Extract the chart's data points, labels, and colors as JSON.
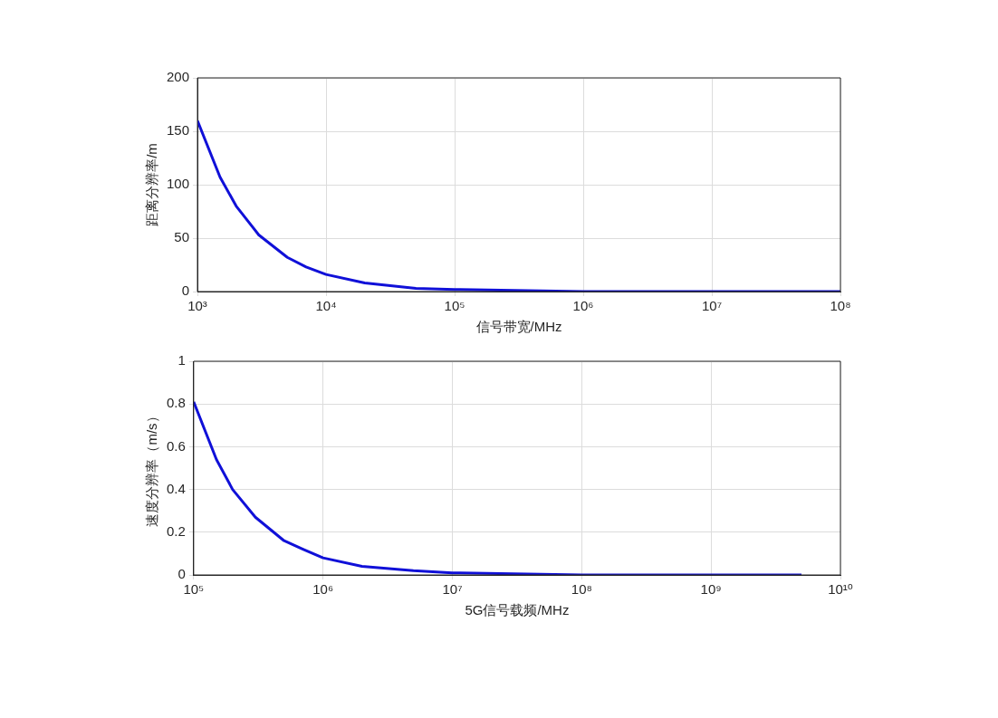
{
  "chart_data": [
    {
      "type": "line",
      "xlabel": "信号带宽/MHz",
      "ylabel": "距离分辨率/m",
      "log": "x",
      "grid": true,
      "legend": false,
      "marker": "none",
      "line_style": "solid",
      "x": [
        1000,
        1500,
        2000,
        3000,
        5000,
        7000,
        10000,
        20000,
        50000,
        100000,
        1000000,
        10000000,
        100000000
      ],
      "series": [
        {
          "color": "#1010d8",
          "values": [
            160,
            107,
            80,
            53,
            32,
            23,
            16,
            8,
            3,
            2,
            0,
            0,
            0
          ]
        }
      ],
      "xlim": [
        1000,
        100000000
      ],
      "xticks": [
        {
          "value": 1000,
          "label": "10³"
        },
        {
          "value": 10000,
          "label": "10⁴"
        },
        {
          "value": 100000,
          "label": "10⁵"
        },
        {
          "value": 1000000,
          "label": "10⁶"
        },
        {
          "value": 10000000,
          "label": "10⁷"
        },
        {
          "value": 100000000,
          "label": "10⁸"
        }
      ],
      "ylim": [
        0,
        200
      ],
      "yticks": [
        0,
        50,
        100,
        150,
        200
      ]
    },
    {
      "type": "line",
      "xlabel": "5G信号载频/MHz",
      "ylabel": "速度分辨率（m/s）",
      "log": "x",
      "grid": true,
      "legend": false,
      "marker": "none",
      "line_style": "solid",
      "x": [
        100000,
        150000,
        200000,
        300000,
        500000,
        700000,
        1000000,
        2000000,
        5000000,
        10000000,
        100000000,
        1000000000,
        5000000000
      ],
      "series": [
        {
          "color": "#1010d8",
          "values": [
            0.81,
            0.54,
            0.4,
            0.27,
            0.16,
            0.12,
            0.08,
            0.04,
            0.02,
            0.01,
            0,
            0,
            0
          ]
        }
      ],
      "xlim": [
        100000,
        10000000000
      ],
      "xticks": [
        {
          "value": 100000,
          "label": "10⁵"
        },
        {
          "value": 1000000,
          "label": "10⁶"
        },
        {
          "value": 10000000,
          "label": "10⁷"
        },
        {
          "value": 100000000,
          "label": "10⁸"
        },
        {
          "value": 1000000000,
          "label": "10⁹"
        },
        {
          "value": 10000000000,
          "label": "10¹⁰"
        }
      ],
      "ylim": [
        0,
        1
      ],
      "yticks": [
        0,
        0.2,
        0.4,
        0.6,
        0.8,
        1
      ]
    }
  ]
}
